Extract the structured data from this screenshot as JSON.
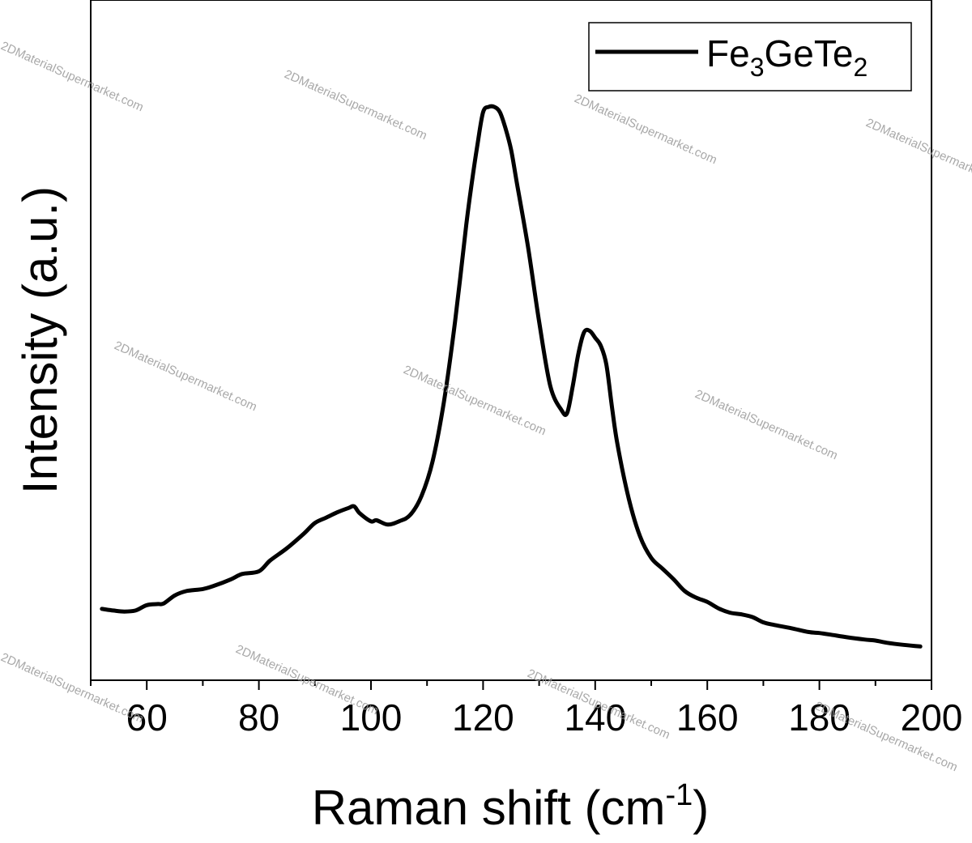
{
  "chart_data": {
    "type": "line",
    "xlabel": {
      "main": "Raman shift (cm",
      "sup": "-1",
      "close": ")"
    },
    "ylabel": "Intensity (a.u.)",
    "xlim": [
      50,
      200
    ],
    "ylim": [
      0,
      1
    ],
    "xticks": [
      60,
      80,
      100,
      120,
      140,
      160,
      180,
      200
    ],
    "y_tick_labels_shown": false,
    "grid": false,
    "legend": {
      "placement": "top-right",
      "label_parts": [
        "Fe",
        "3",
        "Ge",
        "Te",
        "2"
      ]
    },
    "line_color": "#000000",
    "series": [
      {
        "name": "Fe3GeTe2",
        "x": [
          52,
          54,
          56,
          58,
          60,
          62,
          63,
          65,
          67,
          70,
          72,
          75,
          77,
          80,
          82,
          85,
          88,
          90,
          92,
          94,
          96,
          97,
          98,
          100,
          101,
          103,
          105,
          107,
          109,
          111,
          113,
          115,
          117,
          118,
          119,
          120,
          121,
          122,
          123,
          124,
          125,
          126,
          128,
          130,
          132,
          134,
          135,
          136,
          137,
          138,
          139,
          140,
          141,
          142,
          143,
          144,
          146,
          148,
          150,
          152,
          154,
          156,
          158,
          160,
          162,
          164,
          166,
          168,
          170,
          172,
          175,
          178,
          180,
          182,
          185,
          188,
          190,
          192,
          195,
          198
        ],
        "y": [
          0.065,
          0.062,
          0.06,
          0.062,
          0.072,
          0.074,
          0.075,
          0.09,
          0.098,
          0.102,
          0.108,
          0.12,
          0.13,
          0.135,
          0.155,
          0.178,
          0.205,
          0.225,
          0.235,
          0.245,
          0.253,
          0.256,
          0.243,
          0.228,
          0.23,
          0.222,
          0.228,
          0.24,
          0.275,
          0.34,
          0.45,
          0.6,
          0.78,
          0.86,
          0.93,
          0.99,
          1.0,
          1.0,
          0.99,
          0.96,
          0.92,
          0.86,
          0.74,
          0.6,
          0.48,
          0.435,
          0.43,
          0.48,
          0.54,
          0.58,
          0.583,
          0.57,
          0.555,
          0.52,
          0.44,
          0.37,
          0.27,
          0.2,
          0.16,
          0.14,
          0.12,
          0.098,
          0.086,
          0.078,
          0.066,
          0.058,
          0.055,
          0.05,
          0.04,
          0.035,
          0.029,
          0.022,
          0.02,
          0.017,
          0.012,
          0.008,
          0.006,
          0.002,
          -0.002,
          -0.005
        ]
      }
    ]
  },
  "watermark": "2DMaterialSupermarket.com"
}
